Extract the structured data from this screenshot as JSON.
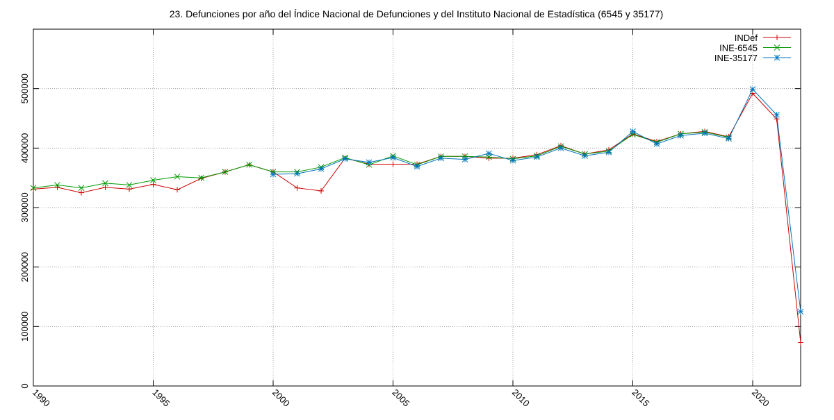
{
  "chart_data": {
    "type": "line",
    "title": "23. Defunciones por año del Índice Nacional de Defunciones y del Instituto Nacional de Estadística (6545 y 35177)",
    "xlabel": "",
    "ylabel": "",
    "xlim": [
      1990,
      2022
    ],
    "ylim": [
      0,
      600000
    ],
    "xticks": [
      1990,
      1995,
      2000,
      2005,
      2010,
      2015,
      2020
    ],
    "yticks": [
      0,
      100000,
      200000,
      300000,
      400000,
      500000
    ],
    "grid": true,
    "legend_position": "top-right",
    "series": [
      {
        "name": "INDef",
        "color": "#cc0000",
        "marker": "plus",
        "x": [
          1990,
          1991,
          1992,
          1993,
          1994,
          1995,
          1996,
          1997,
          1998,
          1999,
          2000,
          2001,
          2002,
          2003,
          2004,
          2005,
          2006,
          2007,
          2008,
          2009,
          2010,
          2011,
          2012,
          2013,
          2014,
          2015,
          2016,
          2017,
          2018,
          2019,
          2020,
          2021,
          2022
        ],
        "values": [
          331000,
          334000,
          325000,
          334000,
          331000,
          339000,
          330000,
          349000,
          360000,
          372000,
          360000,
          333000,
          328000,
          383000,
          373000,
          373000,
          373000,
          386000,
          386000,
          383000,
          383000,
          389000,
          404000,
          390000,
          397000,
          424000,
          411000,
          424000,
          428000,
          419000,
          492000,
          449000,
          73000
        ]
      },
      {
        "name": "INE-6545",
        "color": "#009900",
        "marker": "cross",
        "x": [
          1990,
          1991,
          1992,
          1993,
          1994,
          1995,
          1996,
          1997,
          1998,
          1999,
          2000,
          2001,
          2002,
          2003,
          2004,
          2005,
          2006,
          2007,
          2008,
          2009,
          2010,
          2011,
          2012,
          2013,
          2014,
          2015,
          2016,
          2017,
          2018,
          2019
        ],
        "values": [
          333000,
          338000,
          333000,
          341000,
          338000,
          346000,
          352000,
          350000,
          360000,
          372000,
          360000,
          360000,
          368000,
          384000,
          372000,
          387000,
          372000,
          386000,
          386000,
          385000,
          382000,
          387000,
          403000,
          390000,
          395000,
          423000,
          410000,
          424000,
          427000,
          418000
        ]
      },
      {
        "name": "INE-35177",
        "color": "#0073b9",
        "marker": "star",
        "x": [
          2000,
          2001,
          2002,
          2003,
          2004,
          2005,
          2006,
          2007,
          2008,
          2009,
          2010,
          2011,
          2012,
          2013,
          2014,
          2015,
          2016,
          2017,
          2018,
          2019,
          2020,
          2021,
          2022
        ],
        "values": [
          356000,
          357000,
          365000,
          382000,
          376000,
          384000,
          369000,
          383000,
          381000,
          391000,
          379000,
          385000,
          400000,
          387000,
          393000,
          428000,
          407000,
          421000,
          425000,
          416000,
          499000,
          456000,
          125000
        ]
      }
    ]
  }
}
